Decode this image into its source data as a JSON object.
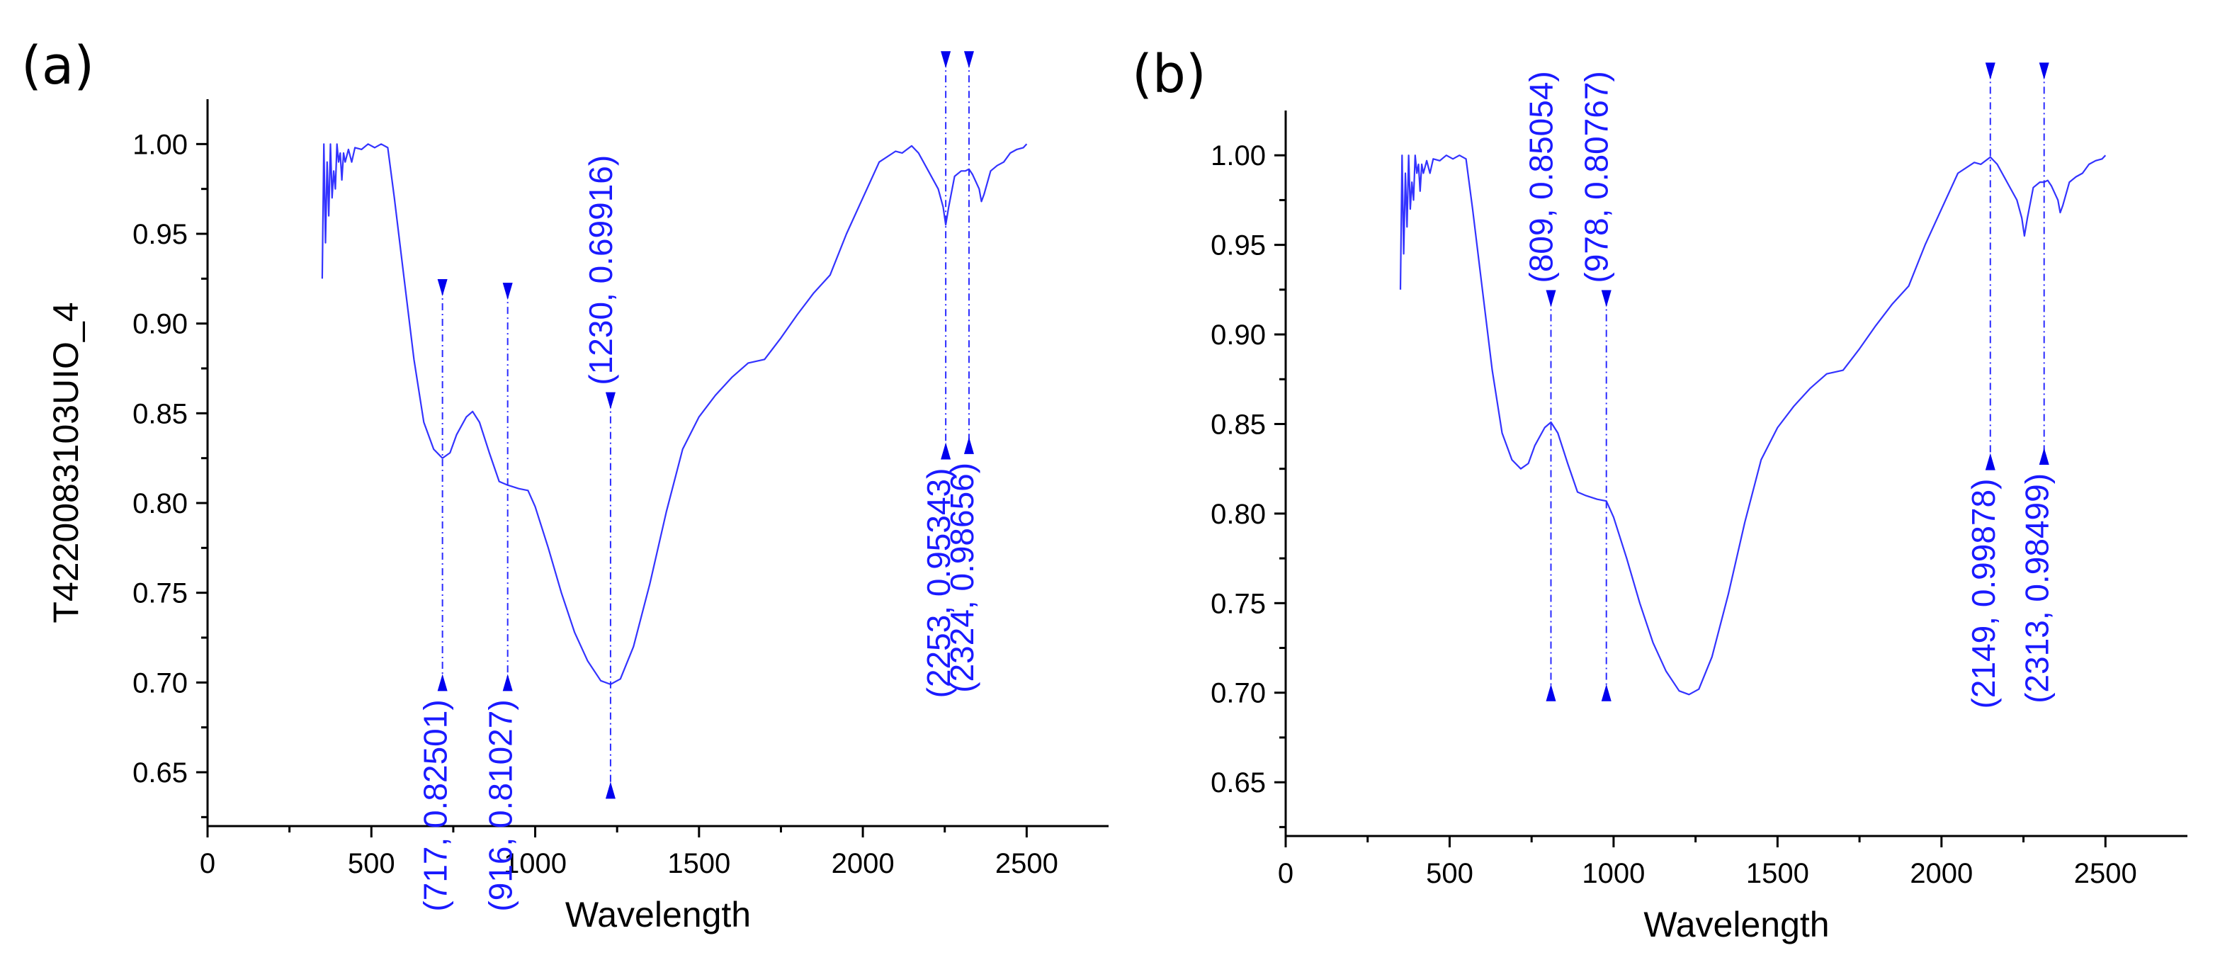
{
  "chart_data": [
    {
      "type": "line",
      "panel_label": "(a)",
      "xlabel": "Wavelength",
      "ylabel": "T4220083103UIO_4",
      "xlim": [
        0,
        2750
      ],
      "ylim": [
        0.62,
        1.025
      ],
      "x_ticks": [
        0,
        500,
        1000,
        1500,
        2000,
        2500
      ],
      "x_tick_labels": [
        "0",
        "500",
        "1000",
        "1500",
        "2000",
        "2500"
      ],
      "y_ticks": [
        0.65,
        0.7,
        0.75,
        0.8,
        0.85,
        0.9,
        0.95,
        1.0
      ],
      "y_tick_labels": [
        "0.65",
        "0.70",
        "0.75",
        "0.80",
        "0.85",
        "0.90",
        "0.95",
        "1.00"
      ],
      "series": [
        {
          "name": "T4220083103UIO_4",
          "color": "#3333ff",
          "x": [
            350,
            355,
            360,
            365,
            370,
            375,
            380,
            385,
            390,
            395,
            400,
            405,
            410,
            415,
            420,
            430,
            440,
            450,
            470,
            490,
            510,
            530,
            550,
            570,
            600,
            630,
            660,
            690,
            717,
            740,
            760,
            790,
            809,
            830,
            860,
            890,
            916,
            950,
            978,
            1000,
            1040,
            1080,
            1120,
            1160,
            1200,
            1230,
            1260,
            1300,
            1350,
            1400,
            1450,
            1500,
            1550,
            1600,
            1650,
            1700,
            1750,
            1800,
            1850,
            1900,
            1950,
            2000,
            2050,
            2100,
            2120,
            2149,
            2170,
            2200,
            2230,
            2245,
            2253,
            2262,
            2280,
            2300,
            2313,
            2324,
            2335,
            2355,
            2362,
            2370,
            2390,
            2410,
            2430,
            2450,
            2470,
            2490,
            2500
          ],
          "y": [
            0.925,
            1.0,
            0.945,
            0.99,
            0.96,
            1.0,
            0.97,
            0.985,
            0.975,
            1.0,
            0.99,
            0.995,
            0.98,
            0.995,
            0.99,
            0.997,
            0.99,
            0.998,
            0.997,
            1.0,
            0.998,
            1.0,
            0.998,
            0.97,
            0.925,
            0.88,
            0.845,
            0.83,
            0.825,
            0.828,
            0.838,
            0.848,
            0.851,
            0.845,
            0.828,
            0.812,
            0.81,
            0.808,
            0.807,
            0.798,
            0.775,
            0.75,
            0.728,
            0.712,
            0.701,
            0.699,
            0.702,
            0.72,
            0.755,
            0.795,
            0.83,
            0.848,
            0.86,
            0.87,
            0.878,
            0.88,
            0.892,
            0.905,
            0.917,
            0.927,
            0.95,
            0.97,
            0.99,
            0.996,
            0.995,
            0.999,
            0.995,
            0.985,
            0.975,
            0.965,
            0.955,
            0.965,
            0.982,
            0.985,
            0.985,
            0.986,
            0.983,
            0.975,
            0.968,
            0.972,
            0.985,
            0.988,
            0.99,
            0.995,
            0.997,
            0.998,
            1.0
          ]
        }
      ],
      "annotations": [
        {
          "x": 717,
          "y": 0.82501,
          "label": "(717, 0.82501)",
          "ytop": 0.92,
          "ybottom": 0.7,
          "text_pos": "below"
        },
        {
          "x": 916,
          "y": 0.81027,
          "label": "(916, 0.81027)",
          "ytop": 0.918,
          "ybottom": 0.7,
          "text_pos": "below"
        },
        {
          "x": 1230,
          "y": 0.69916,
          "label": "(1230, 0.69916)",
          "ytop": 0.857,
          "ybottom": 0.64,
          "text_pos": "above"
        },
        {
          "x": 2253,
          "y": 0.95343,
          "label": "(2253, 0.95343)",
          "ytop": 1.047,
          "ybottom": 0.829,
          "text_pos": "below"
        },
        {
          "x": 2324,
          "y": 0.98656,
          "label": "(2324, 0.98656)",
          "ytop": 1.047,
          "ybottom": 0.832,
          "text_pos": "below"
        }
      ]
    },
    {
      "type": "line",
      "panel_label": "(b)",
      "xlabel": "Wavelength",
      "ylabel": "",
      "xlim": [
        0,
        2750
      ],
      "ylim": [
        0.62,
        1.025
      ],
      "x_ticks": [
        0,
        500,
        1000,
        1500,
        2000,
        2500
      ],
      "x_tick_labels": [
        "0",
        "500",
        "1000",
        "1500",
        "2000",
        "2500"
      ],
      "y_ticks": [
        0.65,
        0.7,
        0.75,
        0.8,
        0.85,
        0.9,
        0.95,
        1.0
      ],
      "y_tick_labels": [
        "0.65",
        "0.70",
        "0.75",
        "0.80",
        "0.85",
        "0.90",
        "0.95",
        "1.00"
      ],
      "series": [
        {
          "name": "T4220083103UIO_4",
          "color": "#3333ff",
          "x": [
            350,
            355,
            360,
            365,
            370,
            375,
            380,
            385,
            390,
            395,
            400,
            405,
            410,
            415,
            420,
            430,
            440,
            450,
            470,
            490,
            510,
            530,
            550,
            570,
            600,
            630,
            660,
            690,
            717,
            740,
            760,
            790,
            809,
            830,
            860,
            890,
            916,
            950,
            978,
            1000,
            1040,
            1080,
            1120,
            1160,
            1200,
            1230,
            1260,
            1300,
            1350,
            1400,
            1450,
            1500,
            1550,
            1600,
            1650,
            1700,
            1750,
            1800,
            1850,
            1900,
            1950,
            2000,
            2050,
            2100,
            2120,
            2149,
            2170,
            2200,
            2230,
            2245,
            2253,
            2262,
            2280,
            2300,
            2313,
            2324,
            2335,
            2355,
            2362,
            2370,
            2390,
            2410,
            2430,
            2450,
            2470,
            2490,
            2500
          ],
          "y": [
            0.925,
            1.0,
            0.945,
            0.99,
            0.96,
            1.0,
            0.97,
            0.985,
            0.975,
            1.0,
            0.99,
            0.995,
            0.98,
            0.995,
            0.99,
            0.997,
            0.99,
            0.998,
            0.997,
            1.0,
            0.998,
            1.0,
            0.998,
            0.97,
            0.925,
            0.88,
            0.845,
            0.83,
            0.825,
            0.828,
            0.838,
            0.848,
            0.851,
            0.845,
            0.828,
            0.812,
            0.81,
            0.808,
            0.807,
            0.798,
            0.775,
            0.75,
            0.728,
            0.712,
            0.701,
            0.699,
            0.702,
            0.72,
            0.755,
            0.795,
            0.83,
            0.848,
            0.86,
            0.87,
            0.878,
            0.88,
            0.892,
            0.905,
            0.917,
            0.927,
            0.95,
            0.97,
            0.99,
            0.996,
            0.995,
            0.999,
            0.995,
            0.985,
            0.975,
            0.965,
            0.955,
            0.965,
            0.982,
            0.985,
            0.985,
            0.986,
            0.983,
            0.975,
            0.968,
            0.972,
            0.985,
            0.988,
            0.99,
            0.995,
            0.997,
            0.998,
            1.0
          ]
        }
      ],
      "annotations": [
        {
          "x": 809,
          "y": 0.85054,
          "label": "(809, 0.85054)",
          "ytop": 0.92,
          "ybottom": 0.7,
          "text_pos": "above"
        },
        {
          "x": 978,
          "y": 0.80767,
          "label": "(978, 0.80767)",
          "ytop": 0.92,
          "ybottom": 0.7,
          "text_pos": "above"
        },
        {
          "x": 2149,
          "y": 0.99878,
          "label": "(2149, 0.99878)",
          "ytop": 1.047,
          "ybottom": 0.829,
          "text_pos": "below"
        },
        {
          "x": 2313,
          "y": 0.98499,
          "label": "(2313, 0.98499)",
          "ytop": 1.047,
          "ybottom": 0.832,
          "text_pos": "below"
        }
      ]
    }
  ]
}
